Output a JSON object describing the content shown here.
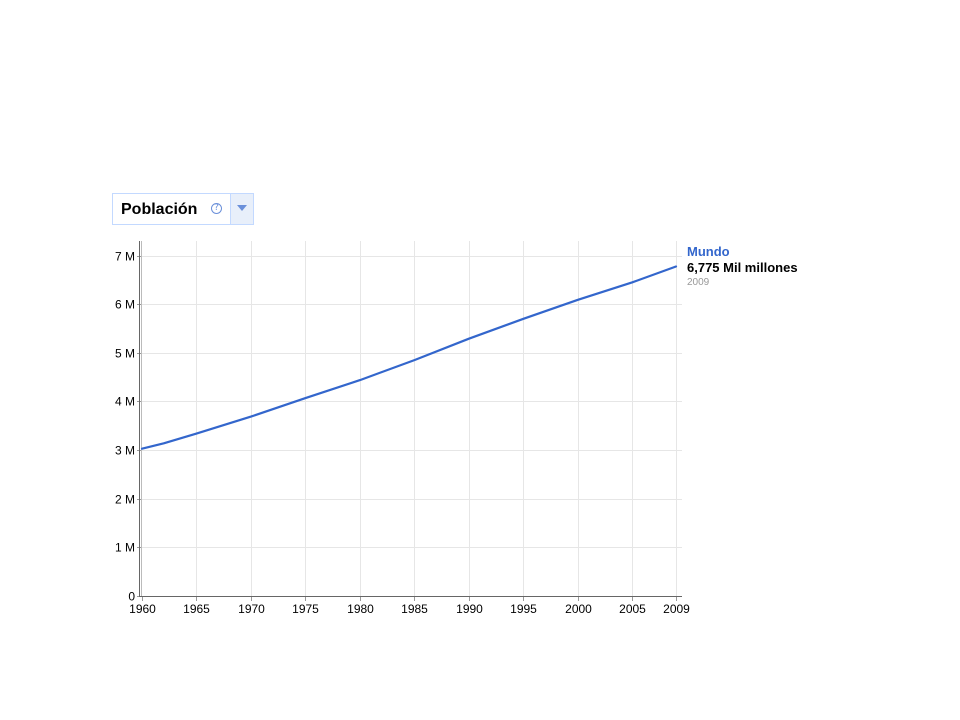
{
  "selector": {
    "label": "Población",
    "help_icon": "question-circle-icon",
    "dropdown_icon": "triangle-down-icon"
  },
  "legend": {
    "series_name": "Mundo",
    "value_text": "6,775 Mil millones",
    "year_text": "2009"
  },
  "colors": {
    "series": "#3366cc",
    "grid": "#e6e6e6",
    "axis": "#999999",
    "selector_border": "#c3d9ff"
  },
  "chart_data": {
    "type": "line",
    "title": "",
    "xlabel": "",
    "ylabel": "",
    "xlim": [
      1960,
      2009
    ],
    "ylim": [
      0,
      7.3
    ],
    "x_ticks": [
      1960,
      1965,
      1970,
      1975,
      1980,
      1985,
      1990,
      1995,
      2000,
      2005,
      2009
    ],
    "y_ticks": [
      {
        "value": 0,
        "label": "0"
      },
      {
        "value": 1,
        "label": "1 M"
      },
      {
        "value": 2,
        "label": "2 M"
      },
      {
        "value": 3,
        "label": "3 M"
      },
      {
        "value": 4,
        "label": "4 M"
      },
      {
        "value": 5,
        "label": "5 M"
      },
      {
        "value": 6,
        "label": "6 M"
      },
      {
        "value": 7,
        "label": "7 M"
      }
    ],
    "grid": true,
    "series": [
      {
        "name": "Mundo",
        "x": [
          1960,
          1962,
          1965,
          1970,
          1975,
          1980,
          1985,
          1990,
          1995,
          2000,
          2005,
          2009
        ],
        "y": [
          3.03,
          3.14,
          3.34,
          3.69,
          4.07,
          4.44,
          4.85,
          5.29,
          5.7,
          6.09,
          6.45,
          6.775
        ]
      }
    ]
  }
}
